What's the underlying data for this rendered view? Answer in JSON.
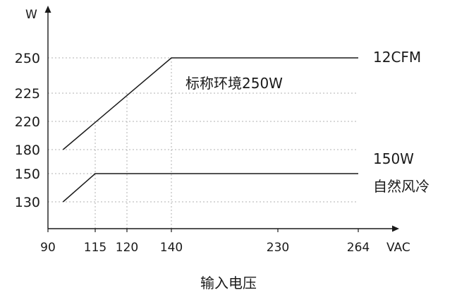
{
  "chart_data": {
    "type": "line",
    "ylabel": "W",
    "xunit": "VAC",
    "xlabel": "输入电压",
    "x_ticks": [
      90,
      115,
      120,
      140,
      230,
      264
    ],
    "y_ticks": [
      130,
      150,
      180,
      220,
      225,
      250
    ],
    "xlim": [
      90,
      264
    ],
    "ylim": [
      130,
      250
    ],
    "series": [
      {
        "name": "12CFM",
        "color": "#1a1a1a",
        "x": [
          98,
          140,
          264
        ],
        "y": [
          180,
          250,
          250
        ]
      },
      {
        "name": "150W 自然风冷",
        "label_lines": [
          "150W",
          "自然风冷"
        ],
        "color": "#1a1a1a",
        "x": [
          98,
          115,
          264
        ],
        "y": [
          130,
          150,
          150
        ]
      }
    ],
    "guides": [
      {
        "x": 115,
        "y": 220
      },
      {
        "x": 120,
        "y": 225
      },
      {
        "x": 140,
        "y": 250
      }
    ],
    "annotations": [
      "标称环境250W"
    ]
  }
}
